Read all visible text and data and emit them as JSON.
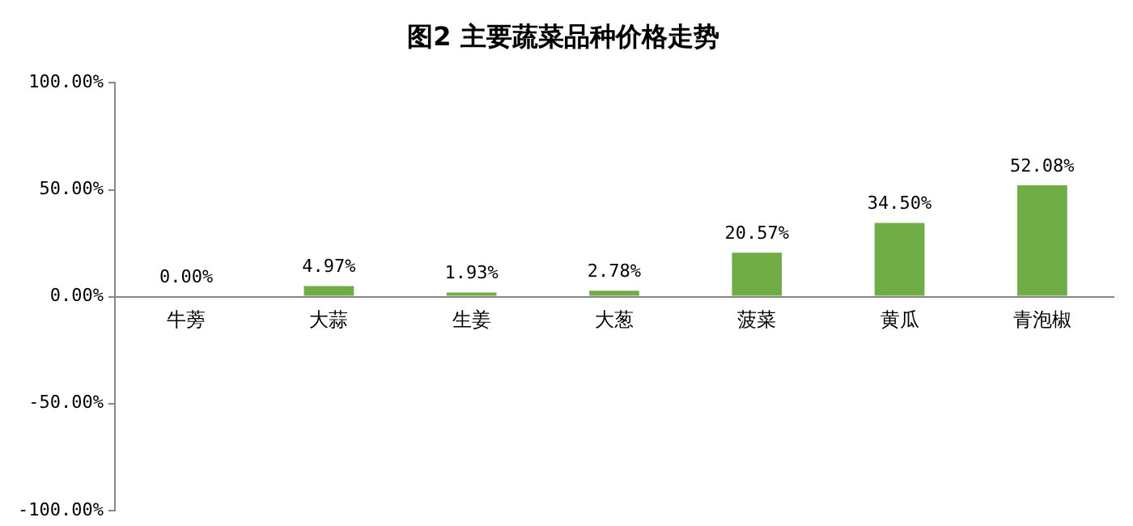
{
  "chart_data": {
    "type": "bar",
    "title": "图2 主要蔬菜品种价格走势",
    "categories": [
      "牛蒡",
      "大蒜",
      "生姜",
      "大葱",
      "菠菜",
      "黄瓜",
      "青泡椒"
    ],
    "values": [
      0.0,
      4.97,
      1.93,
      2.78,
      20.57,
      34.5,
      52.08
    ],
    "value_labels": [
      "0.00%",
      "4.97%",
      "1.93%",
      "2.78%",
      "20.57%",
      "34.50%",
      "52.08%"
    ],
    "color": "#70ad47",
    "ylim": [
      -100,
      100
    ],
    "yticks": [
      {
        "value": -100,
        "label": "-100.00%"
      },
      {
        "value": -50,
        "label": "-50.00%"
      },
      {
        "value": 0,
        "label": "0.00%"
      },
      {
        "value": 50,
        "label": "50.00%"
      },
      {
        "value": 100,
        "label": "100.00%"
      }
    ],
    "grid": false,
    "legend": false
  }
}
